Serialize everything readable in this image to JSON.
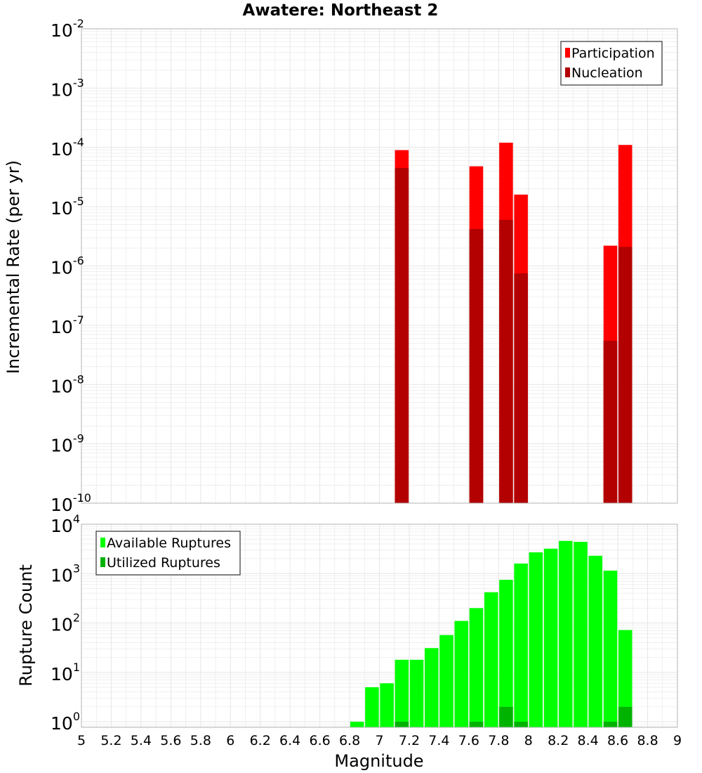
{
  "colors": {
    "participation": "#ff0000",
    "nucleation": "#b30000",
    "available": "#00ff00",
    "utilized": "#00b300",
    "grid": "#e6e6e6",
    "frame": "#b3b3b3"
  },
  "chart_data": [
    {
      "type": "bar",
      "title": "Awatere: Northeast 2",
      "xlabel": "",
      "ylabel": "Incremental Rate (per yr)",
      "yscale": "log",
      "xlim": [
        5,
        9
      ],
      "ylim": [
        1e-10,
        0.01
      ],
      "y_ticks": [
        {
          "value": 1e-10,
          "base": "10",
          "exp": "-10"
        },
        {
          "value": 1e-09,
          "base": "10",
          "exp": "-9"
        },
        {
          "value": 1e-08,
          "base": "10",
          "exp": "-8"
        },
        {
          "value": 1e-07,
          "base": "10",
          "exp": "-7"
        },
        {
          "value": 1e-06,
          "base": "10",
          "exp": "-6"
        },
        {
          "value": 1e-05,
          "base": "10",
          "exp": "-5"
        },
        {
          "value": 0.0001,
          "base": "10",
          "exp": "-4"
        },
        {
          "value": 0.001,
          "base": "10",
          "exp": "-3"
        },
        {
          "value": 0.01,
          "base": "10",
          "exp": "-2"
        }
      ],
      "legend_position": "top-right",
      "series": [
        {
          "name": "Participation",
          "color_key": "participation",
          "x": [
            7.15,
            7.65,
            7.85,
            7.95,
            8.55,
            8.65
          ],
          "values": [
            9e-05,
            4.8e-05,
            0.00012,
            1.6e-05,
            2.2e-06,
            0.00011
          ]
        },
        {
          "name": "Nucleation",
          "color_key": "nucleation",
          "x": [
            7.15,
            7.65,
            7.85,
            7.95,
            8.55,
            8.65
          ],
          "values": [
            4.5e-05,
            4.2e-06,
            6e-06,
            7.5e-07,
            5.5e-08,
            2.1e-06
          ]
        }
      ]
    },
    {
      "type": "bar",
      "title": "",
      "xlabel": "Magnitude",
      "ylabel": "Rupture Count",
      "yscale": "log",
      "xlim": [
        5,
        9
      ],
      "ylim": [
        0.77,
        10000
      ],
      "x_ticks": [
        "5",
        "5.2",
        "5.4",
        "5.6",
        "5.8",
        "6",
        "6.2",
        "6.4",
        "6.6",
        "6.8",
        "7",
        "7.2",
        "7.4",
        "7.6",
        "7.8",
        "8",
        "8.2",
        "8.4",
        "8.6",
        "8.8",
        "9"
      ],
      "y_ticks": [
        {
          "value": 1,
          "base": "10",
          "exp": "0"
        },
        {
          "value": 10,
          "base": "10",
          "exp": "1"
        },
        {
          "value": 100,
          "base": "10",
          "exp": "2"
        },
        {
          "value": 1000,
          "base": "10",
          "exp": "3"
        },
        {
          "value": 10000,
          "base": "10",
          "exp": "4"
        }
      ],
      "legend_position": "top-left",
      "series": [
        {
          "name": "Available Ruptures",
          "color_key": "available",
          "x": [
            6.85,
            6.95,
            7.05,
            7.15,
            7.25,
            7.35,
            7.45,
            7.55,
            7.65,
            7.75,
            7.85,
            7.95,
            8.05,
            8.15,
            8.25,
            8.35,
            8.45,
            8.55,
            8.65
          ],
          "values": [
            1,
            5,
            6,
            18,
            18,
            31,
            57,
            110,
            200,
            420,
            750,
            1600,
            2700,
            3200,
            4600,
            4400,
            2300,
            1150,
            72
          ]
        },
        {
          "name": "Utilized Ruptures",
          "color_key": "utilized",
          "x": [
            7.15,
            7.65,
            7.85,
            7.95,
            8.55,
            8.65
          ],
          "values": [
            1,
            1,
            2,
            1,
            1,
            2
          ]
        }
      ]
    }
  ]
}
